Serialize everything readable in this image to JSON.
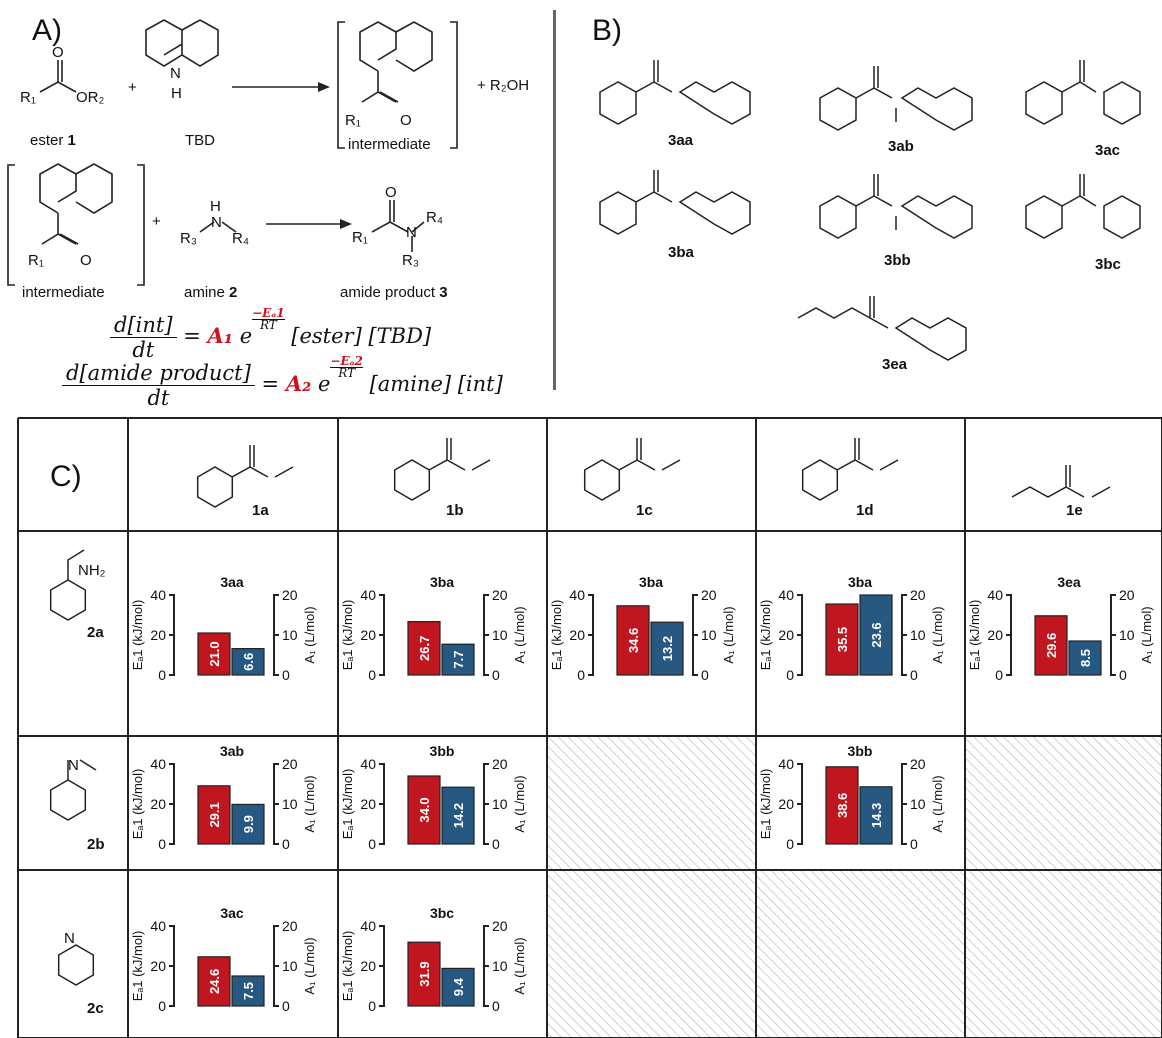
{
  "panelA": {
    "label": "A)",
    "r1": "R₁",
    "or2": "OR₂",
    "plus": "+",
    "plus_r2oh": "+  R₂OH",
    "ester_caption": "ester ",
    "ester_num": "1",
    "tbd_caption": "TBD",
    "intermediate": "intermediate",
    "r3": "R₃",
    "r4": "R₄",
    "n": "N",
    "h": "H",
    "amine_caption": "amine ",
    "amine_num": "2",
    "amide_caption": "amide product ",
    "amide_num": "3",
    "o": "O",
    "nh": "N"
  },
  "equations": {
    "eq1_num": "d[int]",
    "eq1_den": "dt",
    "eq1_A": "A₁",
    "eq1_e": "e",
    "eq1_exp_num": "−Eₐ1",
    "eq1_exp_den": "RT",
    "eq1_rhs": "[ester] [TBD]",
    "eq2_num": "d[amide product]",
    "eq2_den": "dt",
    "eq2_A": "A₂",
    "eq2_e": "e",
    "eq2_exp_num": "−Eₐ2",
    "eq2_exp_den": "RT",
    "eq2_rhs": "[amine] [int]",
    "equals": "="
  },
  "panelB": {
    "label": "B)",
    "compounds": [
      "3aa",
      "3ab",
      "3ac",
      "3ba",
      "3bb",
      "3bc",
      "3ea"
    ]
  },
  "panelC": {
    "label": "C)",
    "esters": [
      "1a",
      "1b",
      "1c",
      "1d",
      "1e"
    ],
    "amines": [
      "2a",
      "2b",
      "2c"
    ],
    "amine_groups": [
      "NH₂",
      "N",
      "N"
    ],
    "left_axis_label": "Eₐ1 (kJ/mol)",
    "right_axis_label": "A₁ (L/mol)"
  },
  "chart_data": {
    "type": "bar",
    "left_axis": {
      "label": "EA1 (kJ/mol)",
      "ylim": [
        0,
        40
      ],
      "ticks": [
        0,
        20,
        40
      ]
    },
    "right_axis": {
      "label": "A1 (L/mol)",
      "ylim": [
        0,
        20
      ],
      "ticks": [
        0,
        10,
        20
      ]
    },
    "colors": {
      "Ea": "#c0161f",
      "A": "#265882"
    },
    "cells": [
      {
        "row": "2a",
        "col": "1a",
        "product": "3aa",
        "Ea": 21.0,
        "A": 6.6
      },
      {
        "row": "2a",
        "col": "1b",
        "product": "3ba",
        "Ea": 26.7,
        "A": 7.7
      },
      {
        "row": "2a",
        "col": "1c",
        "product": "3ba",
        "Ea": 34.6,
        "A": 13.2
      },
      {
        "row": "2a",
        "col": "1d",
        "product": "3ba",
        "Ea": 35.5,
        "A": 23.6
      },
      {
        "row": "2a",
        "col": "1e",
        "product": "3ea",
        "Ea": 29.6,
        "A": 8.5
      },
      {
        "row": "2b",
        "col": "1a",
        "product": "3ab",
        "Ea": 29.1,
        "A": 9.9
      },
      {
        "row": "2b",
        "col": "1b",
        "product": "3bb",
        "Ea": 34.0,
        "A": 14.2
      },
      {
        "row": "2b",
        "col": "1d",
        "product": "3bb",
        "Ea": 38.6,
        "A": 14.3
      },
      {
        "row": "2c",
        "col": "1a",
        "product": "3ac",
        "Ea": 24.6,
        "A": 7.5
      },
      {
        "row": "2c",
        "col": "1b",
        "product": "3bc",
        "Ea": 31.9,
        "A": 9.4
      }
    ],
    "empty_cells": [
      {
        "row": "2b",
        "col": "1c"
      },
      {
        "row": "2b",
        "col": "1e"
      },
      {
        "row": "2c",
        "col": "1c"
      },
      {
        "row": "2c",
        "col": "1d"
      },
      {
        "row": "2c",
        "col": "1e"
      }
    ]
  }
}
